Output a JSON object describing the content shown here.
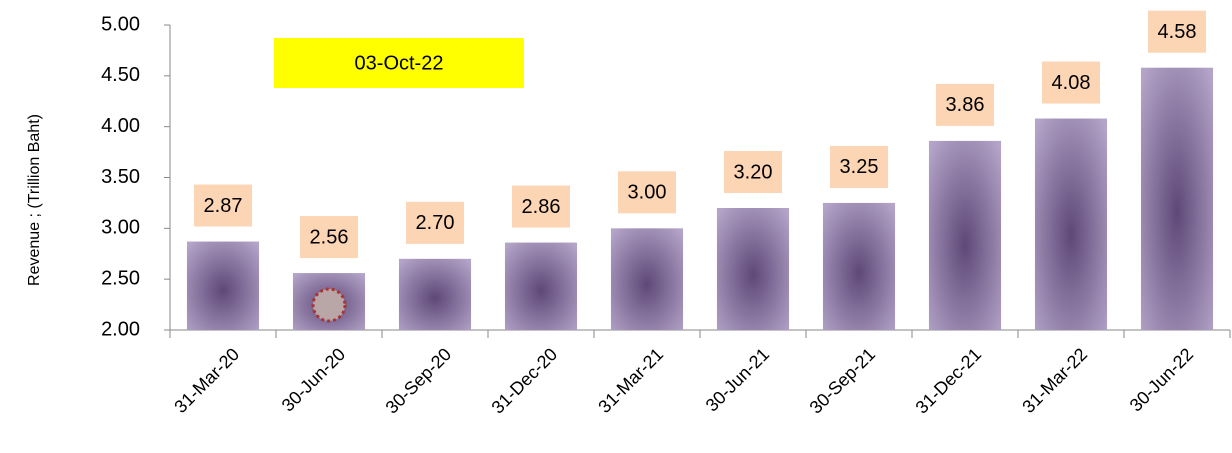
{
  "chart_data": {
    "type": "bar",
    "y_label": "Revenue ;  (Trillion Baht)",
    "annotation": "03-Oct-22",
    "categories": [
      "31-Mar-20",
      "30-Jun-20",
      "30-Sep-20",
      "31-Dec-20",
      "31-Mar-21",
      "30-Jun-21",
      "30-Sep-21",
      "31-Dec-21",
      "31-Mar-22",
      "30-Jun-22"
    ],
    "values": [
      2.87,
      2.56,
      2.7,
      2.86,
      3.0,
      3.2,
      3.25,
      3.86,
      4.08,
      4.58
    ],
    "value_labels": [
      "2.87",
      "2.56",
      "2.70",
      "2.86",
      "3.00",
      "3.20",
      "3.25",
      "3.86",
      "4.08",
      "4.58"
    ],
    "color": "#7a6496",
    "ylim": [
      2,
      5
    ],
    "yticks": [
      {
        "value": 2,
        "label": "2.00"
      },
      {
        "value": 2.5,
        "label": "2.50"
      },
      {
        "value": 3,
        "label": "3.00"
      },
      {
        "value": 3.5,
        "label": "3.50"
      },
      {
        "value": 4,
        "label": "4.00"
      },
      {
        "value": 4.5,
        "label": "4.50"
      },
      {
        "value": 5,
        "label": "5.00"
      }
    ]
  }
}
